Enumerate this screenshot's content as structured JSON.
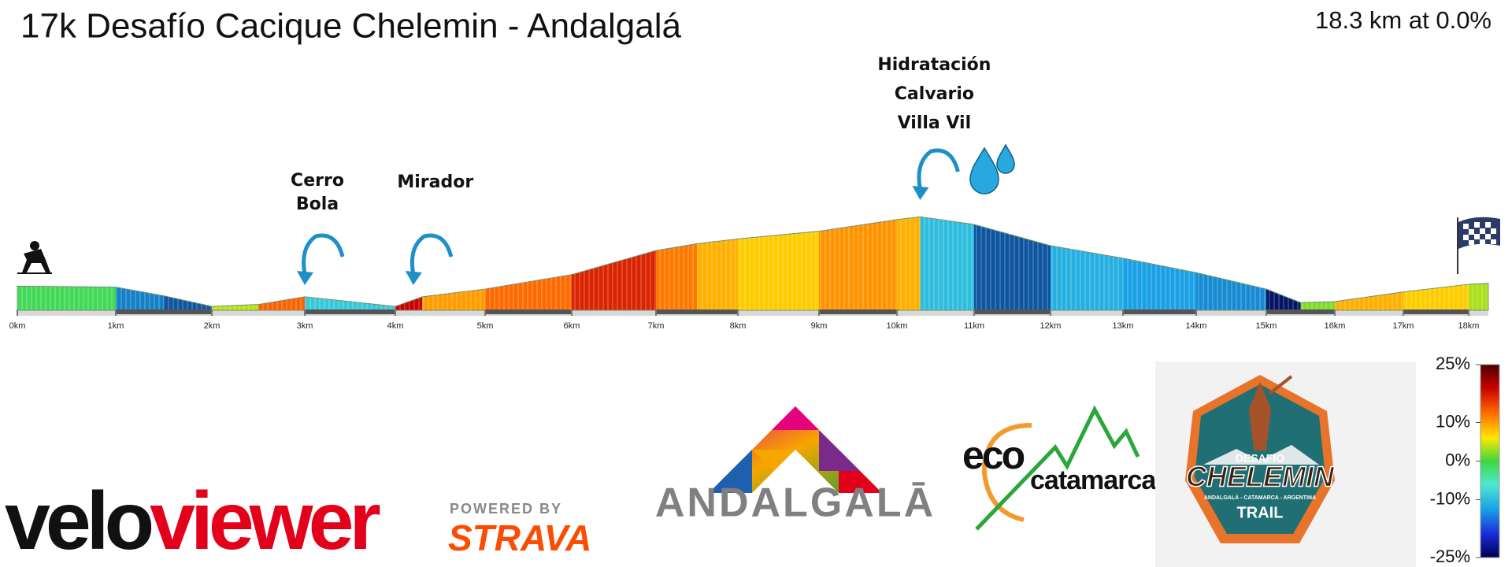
{
  "chart_data": {
    "type": "elevation",
    "title": "17k Desafío Cacique Chelemin - Andalgalá",
    "subtitle": "18.3 km at 0.0%",
    "x": [
      0,
      1,
      1.5,
      2,
      2.5,
      3,
      3.5,
      4,
      4.3,
      5,
      6,
      7,
      7.5,
      8,
      9,
      10,
      10.3,
      11,
      12,
      13,
      14,
      15,
      15.5,
      16,
      17,
      18,
      18.3
    ],
    "values": [
      25,
      24,
      15,
      4,
      6,
      14,
      9,
      4,
      14,
      22,
      37,
      62,
      69,
      74,
      82,
      94,
      97,
      89,
      67,
      54,
      39,
      22,
      8,
      9,
      19,
      27,
      28
    ],
    "xlim": [
      0,
      18.3
    ],
    "xticks": [
      {
        "value": 0,
        "label": "0km"
      },
      {
        "value": 1,
        "label": "1km"
      },
      {
        "value": 2,
        "label": "2km"
      },
      {
        "value": 3,
        "label": "3km"
      },
      {
        "value": 4,
        "label": "4km"
      },
      {
        "value": 5,
        "label": "5km"
      },
      {
        "value": 6,
        "label": "6km"
      },
      {
        "value": 7,
        "label": "7km"
      },
      {
        "value": 8,
        "label": "8km"
      },
      {
        "value": 9,
        "label": "9km"
      },
      {
        "value": 10,
        "label": "10km"
      },
      {
        "value": 11,
        "label": "11km"
      },
      {
        "value": 12,
        "label": "12km"
      },
      {
        "value": 13,
        "label": "13km"
      },
      {
        "value": 14,
        "label": "14km"
      },
      {
        "value": 15,
        "label": "15km"
      },
      {
        "value": 16,
        "label": "16km"
      },
      {
        "value": 17,
        "label": "17km"
      },
      {
        "value": 18,
        "label": "18km"
      }
    ],
    "annotations": [
      {
        "x": 3,
        "lines": [
          "Cerro",
          "Bola"
        ]
      },
      {
        "x": 4.2,
        "lines": [
          "Mirador"
        ]
      },
      {
        "x": 10.3,
        "lines": [
          "Hidratación",
          "Calvario",
          "Villa Vil"
        ]
      }
    ],
    "colorbar": {
      "lim": [
        -25,
        25
      ],
      "ticks": [
        {
          "value": 25,
          "label": "25%"
        },
        {
          "value": 10,
          "label": "10%"
        },
        {
          "value": 0,
          "label": "0%"
        },
        {
          "value": -10,
          "label": "-10%"
        },
        {
          "value": -25,
          "label": "-25%"
        }
      ]
    }
  },
  "logos": {
    "veloviewer": [
      "velo",
      "viewer"
    ],
    "strava": [
      "POWERED BY",
      "STRAVA"
    ],
    "andalgala": "ANDALGALĀ",
    "ecocatamarca": [
      "eco",
      "catamarca"
    ],
    "chelemin": [
      "DESAFIO",
      "CHELEMIN",
      "ANDALGALÁ - CATAMARCA - ARGENTINA",
      "TRAIL"
    ]
  }
}
